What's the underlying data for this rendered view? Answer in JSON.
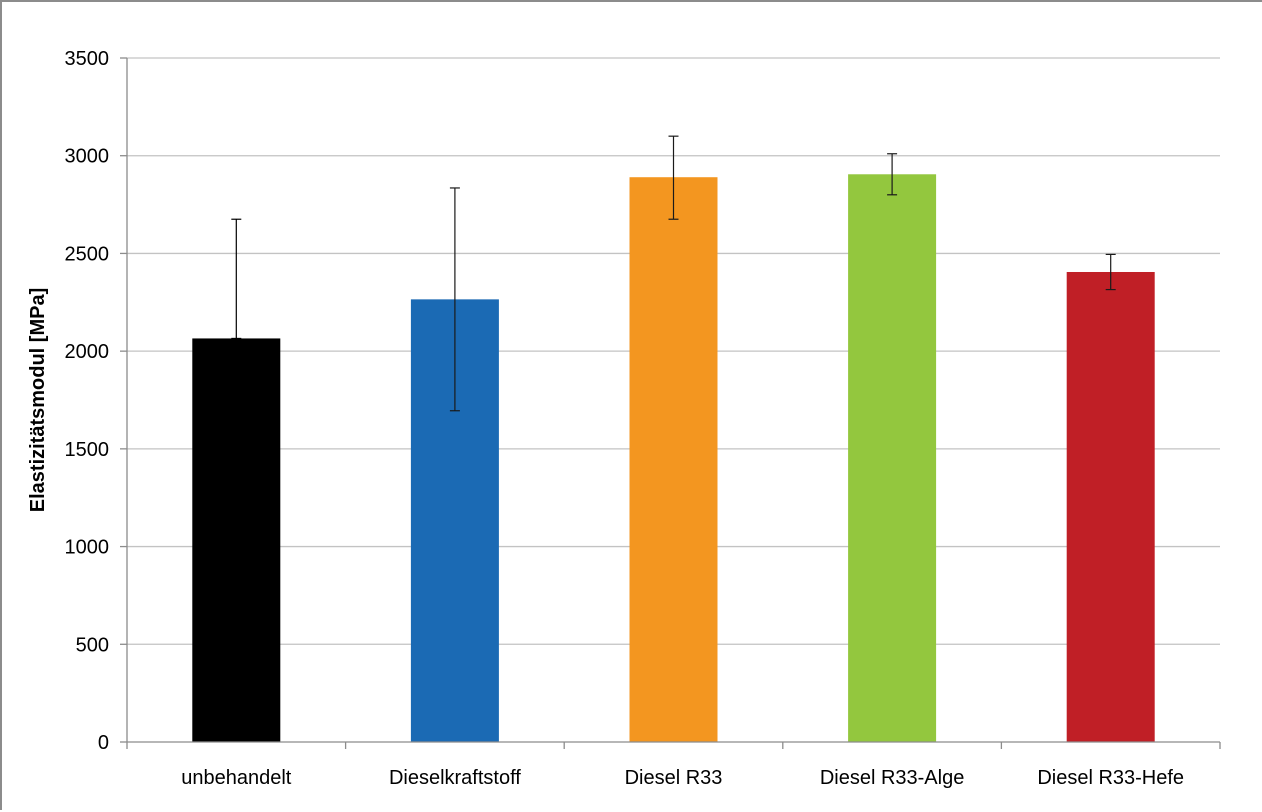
{
  "chart_data": {
    "type": "bar",
    "title": "",
    "xlabel": "",
    "ylabel": "Elastizitätsmodul  [MPa]",
    "ylim": [
      0,
      3500
    ],
    "yticks": [
      0,
      500,
      1000,
      1500,
      2000,
      2500,
      3000,
      3500
    ],
    "grid": true,
    "legend": "none",
    "categories": [
      "unbehandelt",
      "Dieselkraftstoff",
      "Diesel R33",
      "Diesel R33-Alge",
      "Diesel R33-Hefe"
    ],
    "values": [
      2065,
      2265,
      2890,
      2905,
      2405
    ],
    "error_low": [
      2065,
      1695,
      2675,
      2800,
      2315
    ],
    "error_high": [
      2675,
      2835,
      3100,
      3010,
      2495
    ],
    "colors": [
      "#000000",
      "#1b6ab4",
      "#f39620",
      "#93c73e",
      "#c01f26"
    ]
  }
}
